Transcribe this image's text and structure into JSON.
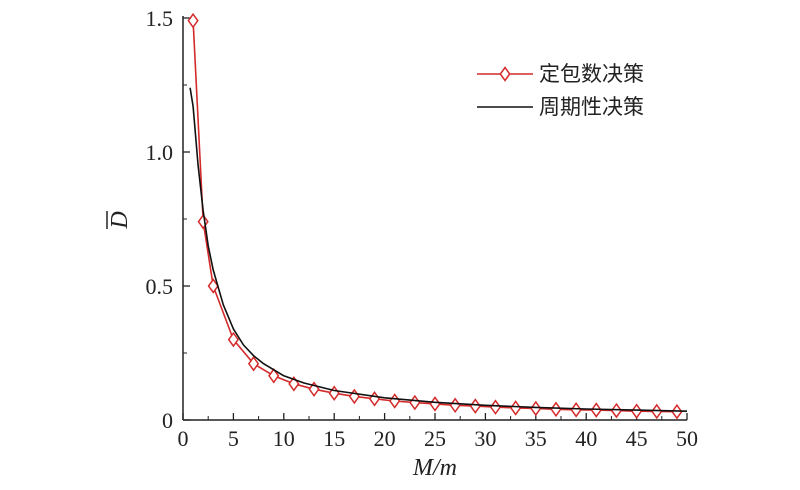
{
  "chart_data": {
    "type": "line",
    "title": "",
    "xlabel": "M/m",
    "ylabel": "D",
    "ylabel_overbar": true,
    "xlim": [
      0,
      50
    ],
    "ylim": [
      0,
      1.5
    ],
    "xticks": [
      0,
      5,
      10,
      15,
      20,
      25,
      30,
      35,
      40,
      45,
      50
    ],
    "xtick_labels": [
      "0",
      "5",
      "10",
      "15",
      "20",
      "25",
      "30",
      "35",
      "40",
      "45",
      "50"
    ],
    "yticks": [
      0,
      0.5,
      1.0,
      1.5
    ],
    "ytick_labels": [
      "0",
      "0.5",
      "1.0",
      "1.5"
    ],
    "grid": false,
    "legend_position": "top-right",
    "series": [
      {
        "name": "定包数决策",
        "color": "#d42a2a",
        "marker": "diamond",
        "x": [
          1,
          2,
          3,
          5,
          7,
          9,
          11,
          13,
          15,
          17,
          19,
          21,
          23,
          25,
          27,
          29,
          31,
          33,
          35,
          37,
          39,
          41,
          43,
          45,
          47,
          49
        ],
        "y": [
          1.49,
          0.74,
          0.5,
          0.3,
          0.21,
          0.165,
          0.135,
          0.115,
          0.1,
          0.088,
          0.079,
          0.071,
          0.065,
          0.06,
          0.055,
          0.052,
          0.048,
          0.045,
          0.043,
          0.04,
          0.038,
          0.037,
          0.035,
          0.033,
          0.032,
          0.031
        ]
      },
      {
        "name": "周期性决策",
        "color": "#111111",
        "marker": "none",
        "x": [
          0.7,
          1,
          1.5,
          2,
          2.5,
          3,
          4,
          5,
          6,
          7,
          8,
          10,
          12,
          15,
          20,
          25,
          30,
          35,
          40,
          45,
          50
        ],
        "y": [
          1.24,
          1.17,
          0.95,
          0.78,
          0.65,
          0.56,
          0.43,
          0.34,
          0.28,
          0.24,
          0.21,
          0.165,
          0.138,
          0.11,
          0.083,
          0.066,
          0.055,
          0.047,
          0.041,
          0.037,
          0.033
        ]
      }
    ]
  }
}
